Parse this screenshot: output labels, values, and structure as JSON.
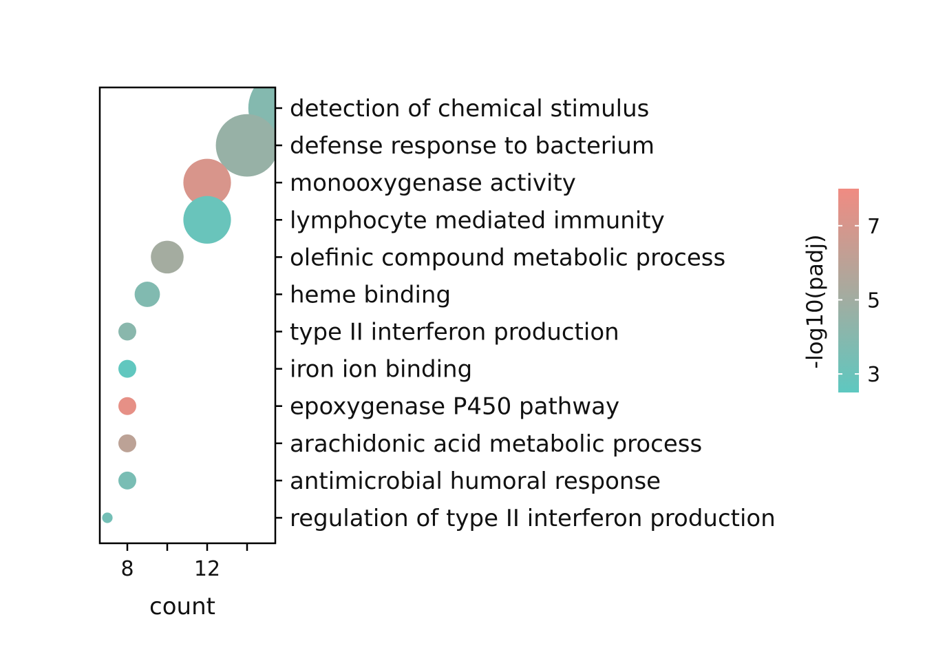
{
  "chart_data": {
    "type": "scatter",
    "subtype": "bubble",
    "categories": [
      "detection of chemical stimulus",
      "defense response to bacterium",
      "monooxygenase activity",
      "lymphocyte mediated immunity",
      "olefinic compound metabolic process",
      "heme binding",
      "type II interferon production",
      "iron ion binding",
      "epoxygenase P450 pathway",
      "arachidonic acid metabolic process",
      "antimicrobial humoral response",
      "regulation of type II interferon production"
    ],
    "count": [
      16,
      14,
      12,
      12,
      10,
      9,
      8,
      8,
      8,
      8,
      8,
      7
    ],
    "neg_log10_padj": [
      3.9,
      4.6,
      7.1,
      2.9,
      5.1,
      3.8,
      4.1,
      2.6,
      7.6,
      6.0,
      3.5,
      3.3
    ],
    "xlabel": "count",
    "xticks": [
      8,
      12
    ],
    "xlim": [
      6.9,
      16
    ],
    "colorbar": {
      "title": "-log10(padj)",
      "ticks": [
        3,
        5,
        7
      ],
      "range": [
        2.5,
        8.0
      ],
      "low_color": "#5ec8c0",
      "mid_color": "#a8aa9e",
      "high_color": "#f08b82"
    },
    "legend_position": "right"
  }
}
